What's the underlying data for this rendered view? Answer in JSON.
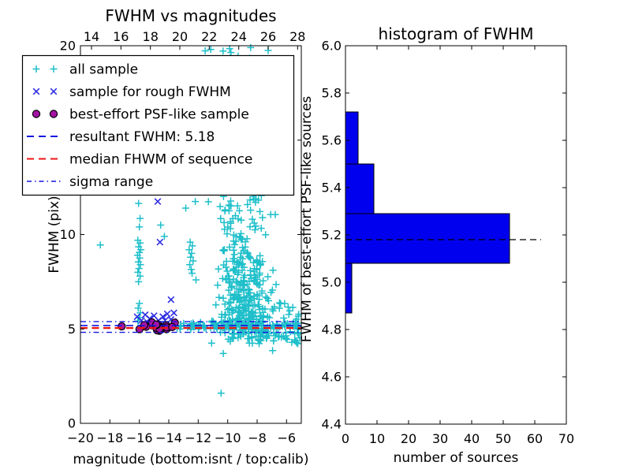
{
  "figure": {
    "background": "#ffffff"
  },
  "chart_data": [
    {
      "type": "scatter",
      "title": "FWHM vs magnitudes",
      "xlabel": "magnitude (bottom:isnt / top:calib)",
      "ylabel": "FWHM (pix)",
      "xlim": [
        -20,
        -5
      ],
      "xlim_top": [
        13.25,
        28.25
      ],
      "ylim": [
        0,
        20
      ],
      "xticks_bottom": [
        -20,
        -18,
        -16,
        -14,
        -12,
        -10,
        -8,
        -6
      ],
      "xticks_top": [
        14,
        16,
        18,
        20,
        22,
        24,
        26,
        28
      ],
      "yticks": [
        0,
        5,
        10,
        15,
        20
      ],
      "grid": false,
      "series": [
        {
          "name": "all sample",
          "marker": "+",
          "color": "#1ebfca",
          "points": [
            [
              -18.65,
              9.45
            ],
            [
              -14.55,
              10.5
            ],
            [
              -14.3,
              9.9
            ],
            [
              -12.85,
              11.4
            ],
            [
              -12.2,
              11.75
            ],
            [
              -12.15,
              7.6
            ],
            [
              -11.15,
              19.8
            ],
            [
              -9.87,
              19.85
            ],
            [
              -8.44,
              19.9
            ],
            [
              -7.25,
              19.75
            ],
            [
              -10.45,
              1.6
            ],
            [
              -10.3,
              3.7
            ],
            [
              -6.95,
              3.85
            ],
            [
              -16.05,
              11.65
            ],
            [
              -15.95,
              10.85
            ],
            [
              -16.0,
              10.4
            ],
            [
              -16.1,
              9.7
            ],
            [
              -15.95,
              9.55
            ],
            [
              -16.05,
              9.35
            ],
            [
              -15.9,
              9.2
            ],
            [
              -16.0,
              9.05
            ],
            [
              -16.12,
              8.9
            ],
            [
              -15.97,
              8.75
            ],
            [
              -16.07,
              8.55
            ],
            [
              -15.93,
              8.4
            ],
            [
              -16.03,
              8.2
            ],
            [
              -16.1,
              8.0
            ],
            [
              -15.95,
              7.8
            ],
            [
              -16.05,
              7.5
            ],
            [
              -16.0,
              6.35
            ],
            [
              -16.08,
              6.1
            ],
            [
              -15.94,
              5.85
            ],
            [
              -16.02,
              5.6
            ],
            [
              -16.1,
              5.42
            ],
            [
              -12.55,
              9.6
            ],
            [
              -12.4,
              9.4
            ],
            [
              -12.62,
              9.2
            ],
            [
              -12.45,
              9.0
            ],
            [
              -12.52,
              8.8
            ],
            [
              -12.35,
              8.6
            ],
            [
              -12.58,
              8.4
            ],
            [
              -12.48,
              8.15
            ],
            [
              -12.42,
              7.95
            ]
          ],
          "point_clouds": [
            {
              "n": 260,
              "x": {
                "dist": "gauss",
                "mu": -8.8,
                "sigma": 0.95,
                "min": -10.8,
                "max": -5.05
              },
              "y": {
                "dist": "skew",
                "base": 4.7,
                "scale": 2.2,
                "min": 4.7,
                "max": 12.5
              }
            },
            {
              "n": 85,
              "x": {
                "dist": "gauss",
                "mu": -9.2,
                "sigma": 0.9,
                "min": -11.6,
                "max": -6.0
              },
              "y": {
                "dist": "uniform",
                "min": 6.5,
                "max": 12.1
              }
            },
            {
              "n": 50,
              "x": {
                "dist": "gauss",
                "mu": -9.5,
                "sigma": 1.1,
                "min": -12.4,
                "max": -6.8
              },
              "y": {
                "dist": "uniform",
                "min": 11.0,
                "max": 19.9
              }
            },
            {
              "n": 115,
              "x": {
                "dist": "uniform",
                "min": -13.65,
                "max": -5.1
              },
              "y": {
                "dist": "gauss",
                "mu": 5.15,
                "sigma": 0.1,
                "min": 4.92,
                "max": 5.45
              }
            },
            {
              "n": 55,
              "x": {
                "dist": "gauss",
                "mu": -7.5,
                "sigma": 1.6,
                "min": -11.9,
                "max": -5.1
              },
              "y": {
                "dist": "uniform",
                "min": 4.2,
                "max": 4.9
              }
            },
            {
              "n": 25,
              "x": {
                "dist": "uniform",
                "min": -7.0,
                "max": -5.05
              },
              "y": {
                "dist": "uniform",
                "min": 4.6,
                "max": 6.5
              }
            }
          ]
        },
        {
          "name": "sample for rough FWHM",
          "marker": "x",
          "color": "#2f2fe2",
          "points": [
            [
              -14.75,
              11.75
            ],
            [
              -14.6,
              9.6
            ],
            [
              -13.85,
              6.55
            ],
            [
              -16.15,
              5.65
            ],
            [
              -15.85,
              5.45
            ],
            [
              -15.6,
              5.75
            ],
            [
              -15.3,
              5.55
            ],
            [
              -15.0,
              5.7
            ],
            [
              -14.7,
              5.45
            ],
            [
              -14.4,
              5.65
            ],
            [
              -14.1,
              5.8
            ],
            [
              -13.85,
              5.5
            ],
            [
              -15.45,
              5.35
            ],
            [
              -14.25,
              5.45
            ],
            [
              -13.65,
              5.85
            ],
            [
              -13.7,
              5.4
            ]
          ],
          "point_clouds": []
        },
        {
          "name": "best-effort PSF-like sample",
          "marker": "circle",
          "color": "#a313a3",
          "edge_color": "#000000",
          "points": [
            [
              -17.2,
              5.14
            ]
          ],
          "point_clouds": [
            {
              "n": 24,
              "x": {
                "dist": "gauss",
                "mu": -14.6,
                "sigma": 0.65,
                "min": -16.0,
                "max": -13.1
              },
              "y": {
                "dist": "gauss",
                "mu": 5.08,
                "sigma": 0.14,
                "min": 4.82,
                "max": 5.4
              }
            }
          ]
        }
      ],
      "hlines": [
        {
          "name": "resultant FWHM",
          "y": 5.18,
          "style": "dashed",
          "color": "#1414dd",
          "width": 1.6
        },
        {
          "name": "median FHWM of sequence",
          "y": 5.05,
          "style": "dashed",
          "color": "#ee1414",
          "width": 2.4
        },
        {
          "name": "sigma range upper",
          "y": 5.39,
          "style": "dashdot",
          "color": "#1414dd",
          "width": 1.4
        },
        {
          "name": "sigma range lower",
          "y": 4.82,
          "style": "dashdot",
          "color": "#1414dd",
          "width": 1.4
        }
      ],
      "legend": {
        "position": "upper left",
        "entries": [
          {
            "label": "all sample",
            "marker": "+",
            "color": "#1ebfca"
          },
          {
            "label": "sample for rough FWHM",
            "marker": "x",
            "color": "#2f2fe2"
          },
          {
            "label": "best-effort PSF-like sample",
            "marker": "circle",
            "color": "#a313a3"
          },
          {
            "label": "resultant FWHM: 5.18",
            "marker": "dashed-line",
            "color": "#1414dd"
          },
          {
            "label": "median FHWM of sequence",
            "marker": "dashed-line",
            "color": "#ee1414"
          },
          {
            "label": "sigma range",
            "marker": "dashdot-line",
            "color": "#1414dd"
          }
        ]
      }
    },
    {
      "type": "bar",
      "orientation": "horizontal",
      "title": "histogram of FWHM",
      "xlabel": "number of sources",
      "ylabel": "FWHM of best-effort PSF-like sources",
      "xlim": [
        0,
        70
      ],
      "ylim": [
        4.4,
        6.0
      ],
      "xticks": [
        0,
        10,
        20,
        30,
        40,
        50,
        60,
        70
      ],
      "yticks": [
        4.4,
        4.6,
        4.8,
        5.0,
        5.2,
        5.4,
        5.6,
        5.8,
        6.0
      ],
      "grid": false,
      "bin_edges": [
        4.87,
        5.08,
        5.29,
        5.5,
        5.72
      ],
      "counts": [
        2,
        52,
        9,
        4
      ],
      "bar_color": "#0000ee",
      "bar_edge_color": "#000000",
      "median_line": {
        "y": 5.18,
        "x_start": 0,
        "x_end": 62,
        "style": "dashed",
        "color": "#000000"
      }
    }
  ]
}
